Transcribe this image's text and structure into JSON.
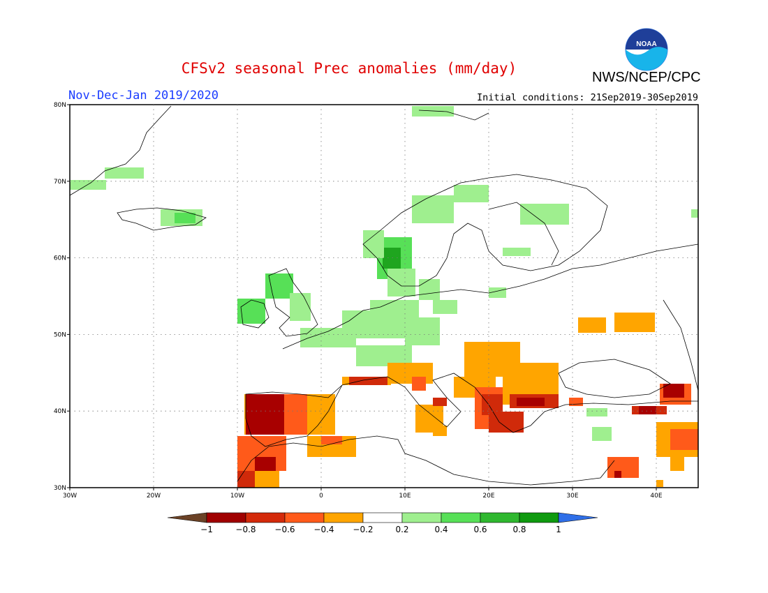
{
  "header": {
    "title": "CFSv2 seasonal Prec anomalies (mm/day)",
    "period": "Nov-Dec-Jan 2019/2020",
    "initial_conditions": "Initial conditions: 21Sep2019-30Sep2019",
    "agency": "NWS/NCEP/CPC",
    "logo_text": "NOAA"
  },
  "map": {
    "lat_labels": [
      "80N",
      "70N",
      "60N",
      "50N",
      "40N",
      "30N"
    ],
    "lon_labels": [
      "30W",
      "20W",
      "10W",
      "0",
      "10E",
      "20E",
      "30E",
      "40E"
    ]
  },
  "colorbar": {
    "labels": [
      "-1",
      "-0.8",
      "-0.6",
      "-0.4",
      "-0.2",
      "0.2",
      "0.4",
      "0.6",
      "0.8",
      "1"
    ],
    "colors": [
      "#6b4226",
      "#a00000",
      "#d42a0a",
      "#ff5a1a",
      "#ffa500",
      "#ffffff",
      "#9fef8f",
      "#57e057",
      "#2fb82f",
      "#0f9a0f",
      "#2f6fe8"
    ]
  },
  "palette": {
    "dark_red": "#a80000",
    "red": "#d02a0a",
    "orange_red": "#ff5a1a",
    "orange": "#ffa500",
    "light_green": "#9fef8f",
    "green": "#57e057",
    "dark_green": "#1fa51f",
    "blue": "#3366ff",
    "coast": "#000000"
  }
}
